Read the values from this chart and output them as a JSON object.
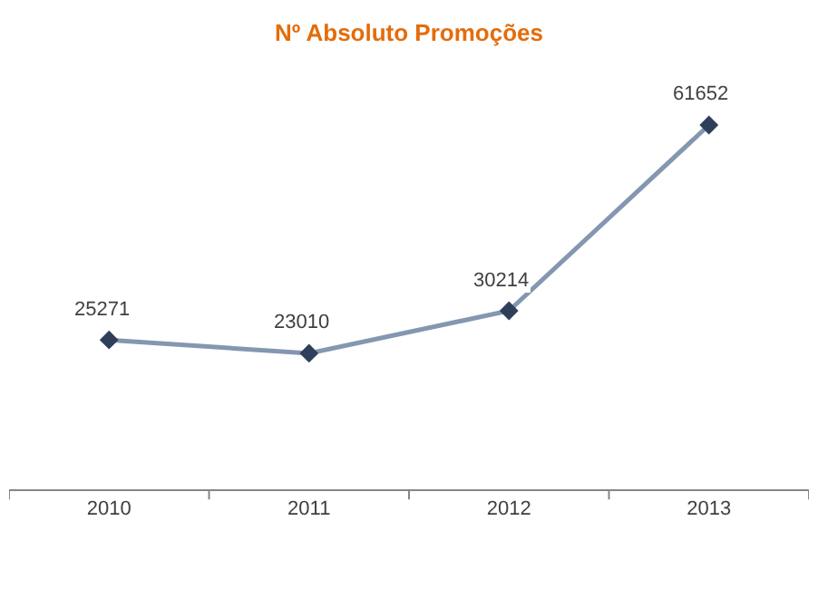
{
  "chart_data": {
    "type": "line",
    "title": "Nº Absoluto Promoções",
    "categories": [
      "2010",
      "2011",
      "2012",
      "2013"
    ],
    "series": [
      {
        "color": "#8497b0",
        "values": [
          25271,
          23010,
          30214,
          61652
        ]
      }
    ],
    "data_labels": true,
    "marker": "diamond",
    "line_style": "solid",
    "legend": false,
    "tick_labels": "x"
  }
}
